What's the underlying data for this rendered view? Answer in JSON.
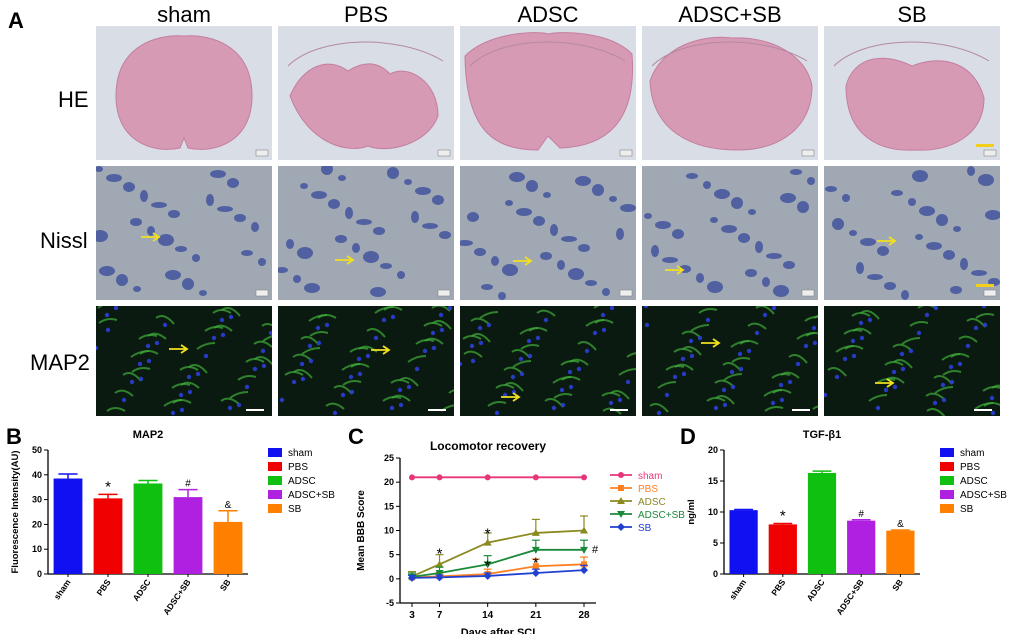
{
  "panel_labels": {
    "a": "A",
    "b": "B",
    "c": "C",
    "d": "D"
  },
  "columns": [
    "sham",
    "PBS",
    "ADSC",
    "ADSC+SB",
    "SB"
  ],
  "rows": [
    "HE",
    "Nissl",
    "MAP2"
  ],
  "colors": {
    "sham": "#1010f0",
    "PBS": "#f00000",
    "ADSC": "#10c010",
    "ADSC+SB": "#b020e0",
    "SB": "#ff8000",
    "line_sham": "#e8357a",
    "line_PBS": "#ff8020",
    "line_ADSC": "#8a8a20",
    "line_ADSCSB": "#1a8a3a",
    "line_SB": "#2040d0",
    "scale_bar": "#f2cf18",
    "arrow": "#f2e020"
  },
  "chart_data": [
    {
      "type": "bar",
      "title": "MAP2",
      "ylabel": "Fluorescence Intensity(AU)",
      "categories": [
        "sham",
        "PBS",
        "ADSC",
        "ADSC+SB",
        "SB"
      ],
      "values": [
        38.5,
        30.5,
        36.5,
        31,
        21
      ],
      "errors": [
        1.8,
        1.6,
        1.2,
        3.0,
        4.5
      ],
      "markers": [
        "",
        "*",
        "",
        "#",
        "&"
      ],
      "ylim": [
        0,
        50
      ],
      "yticks": [
        "0",
        "10",
        "20",
        "30",
        "40",
        "50"
      ],
      "legend": [
        "sham",
        "PBS",
        "ADSC",
        "ADSC+SB",
        "SB"
      ],
      "legend_position": "right"
    },
    {
      "type": "line",
      "title": "Locomotor recovery",
      "xlabel": "Days after SCI",
      "ylabel": "Mean BBB Score",
      "x": [
        3,
        7,
        14,
        21,
        28
      ],
      "xticks": [
        "3",
        "7",
        "14",
        "21",
        "28"
      ],
      "ylim": [
        -5,
        25
      ],
      "yticks": [
        "-5",
        "0",
        "5",
        "10",
        "15",
        "20",
        "25"
      ],
      "series": [
        {
          "name": "sham",
          "values": [
            21,
            21,
            21,
            21,
            21
          ],
          "errors": [
            0,
            0,
            0,
            0,
            0
          ]
        },
        {
          "name": "PBS",
          "values": [
            0.3,
            0.5,
            1.0,
            2.6,
            3.0
          ],
          "errors": [
            0.5,
            0.8,
            1.0,
            1.5,
            1.5
          ]
        },
        {
          "name": "ADSC",
          "values": [
            0.5,
            3.0,
            7.5,
            9.5,
            10.0
          ],
          "errors": [
            1.0,
            2.0,
            2.0,
            2.8,
            3.0
          ]
        },
        {
          "name": "ADSC+SB",
          "values": [
            0.4,
            1.2,
            3.0,
            6.0,
            6.0
          ],
          "errors": [
            0.8,
            1.2,
            1.8,
            2.0,
            2.0
          ]
        },
        {
          "name": "SB",
          "values": [
            0.2,
            0.3,
            0.6,
            1.2,
            1.8
          ],
          "errors": [
            0.5,
            0.5,
            0.6,
            0.8,
            1.0
          ]
        }
      ],
      "annotations": [
        {
          "x": 7,
          "y": 5,
          "text": "*"
        },
        {
          "x": 14,
          "y": 9.2,
          "text": "*"
        },
        {
          "x": 14,
          "y": 2.6,
          "text": "*"
        },
        {
          "x": 21,
          "y": 3.2,
          "text": "*"
        },
        {
          "x": 28,
          "y": 6,
          "text": "#"
        }
      ],
      "legend": [
        "sham",
        "PBS",
        "ADSC",
        "ADSC+SB",
        "SB"
      ],
      "legend_position": "right"
    },
    {
      "type": "bar",
      "title": "TGF-β1",
      "ylabel": "ng/ml",
      "categories": [
        "sham",
        "PBS",
        "ADSC",
        "ADSC+SB",
        "SB"
      ],
      "values": [
        10.3,
        8.0,
        16.3,
        8.6,
        7.0
      ],
      "errors": [
        0.1,
        0.15,
        0.3,
        0.15,
        0.1
      ],
      "markers": [
        "",
        "*",
        "",
        "#",
        "&"
      ],
      "ylim": [
        0,
        20
      ],
      "yticks": [
        "0",
        "5",
        "10",
        "15",
        "20"
      ],
      "legend": [
        "sham",
        "PBS",
        "ADSC",
        "ADSC+SB",
        "SB"
      ],
      "legend_position": "right"
    }
  ]
}
